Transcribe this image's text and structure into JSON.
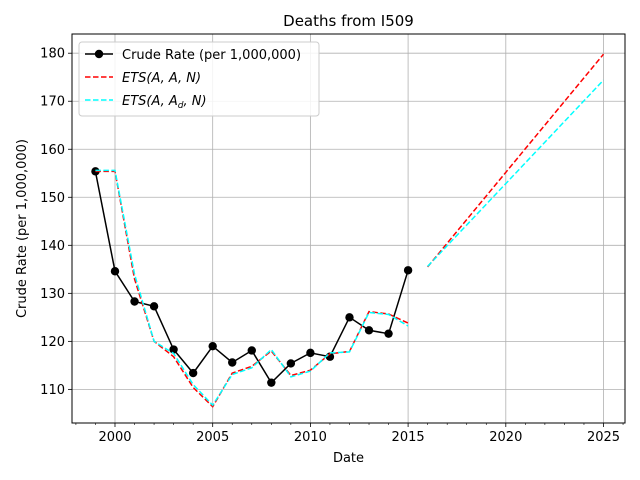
{
  "chart_data": {
    "type": "line",
    "title": "Deaths from I509",
    "xlabel": "Date",
    "ylabel": "Crude Rate (per 1,000,000)",
    "xlim": [
      1997.8,
      2026.1
    ],
    "ylim": [
      103,
      184
    ],
    "xticks": [
      2000,
      2005,
      2010,
      2015,
      2020,
      2025
    ],
    "yticks": [
      110,
      120,
      130,
      140,
      150,
      160,
      170,
      180
    ],
    "grid": true,
    "legend_position": "top-left",
    "legend": [
      {
        "label": "Crude Rate (per 1,000,000)",
        "prefix": "",
        "sub": ""
      },
      {
        "label": "ETS(A, A, N)",
        "prefix": "ETS(A, A, N)",
        "sub": ""
      },
      {
        "label": "ETS(A, Ad, N)",
        "prefix": "ETS(A, A",
        "sub": "d",
        "suffix": ", N)"
      }
    ],
    "series": [
      {
        "name": "Crude Rate (per 1,000,000)",
        "color": "#000000",
        "style": "solid-markers",
        "x": [
          1999,
          2000,
          2001,
          2002,
          2003,
          2004,
          2005,
          2006,
          2007,
          2008,
          2009,
          2010,
          2011,
          2012,
          2013,
          2014,
          2015
        ],
        "y": [
          155.4,
          134.6,
          128.3,
          127.3,
          118.3,
          113.4,
          119.0,
          115.6,
          118.1,
          111.4,
          115.4,
          117.6,
          116.8,
          125.0,
          122.3,
          121.6,
          134.8
        ]
      },
      {
        "name": "ETS(A, A, N)",
        "color": "#ff0000",
        "style": "dashed",
        "x": [
          1999,
          2000,
          2001,
          2002,
          2003,
          2004,
          2005,
          2006,
          2007,
          2008,
          2009,
          2010,
          2011,
          2012,
          2013,
          2014,
          2015
        ],
        "y": [
          155.4,
          155.4,
          133.0,
          120.0,
          116.8,
          110.4,
          106.4,
          113.4,
          114.8,
          118.0,
          112.9,
          114.0,
          117.4,
          117.9,
          126.2,
          125.7,
          123.8
        ]
      },
      {
        "name": "ETS(A, Ad, N)",
        "color": "#00ffff",
        "style": "dashed",
        "x": [
          1999,
          2000,
          2001,
          2002,
          2003,
          2004,
          2005,
          2006,
          2007,
          2008,
          2009,
          2010,
          2011,
          2012,
          2013,
          2014,
          2015
        ],
        "y": [
          155.6,
          155.6,
          134.0,
          120.0,
          117.5,
          111.0,
          106.7,
          113.1,
          114.5,
          118.3,
          112.6,
          113.8,
          117.6,
          117.8,
          126.0,
          125.6,
          123.2
        ]
      },
      {
        "name": "ETS(A, A, N) forecast",
        "color": "#ff0000",
        "style": "dashed",
        "x": [
          2016,
          2025
        ],
        "y": [
          135.5,
          179.8
        ]
      },
      {
        "name": "ETS(A, Ad, N) forecast",
        "color": "#00ffff",
        "style": "dashed",
        "x": [
          2016,
          2025
        ],
        "y": [
          135.6,
          174.4
        ]
      }
    ]
  }
}
